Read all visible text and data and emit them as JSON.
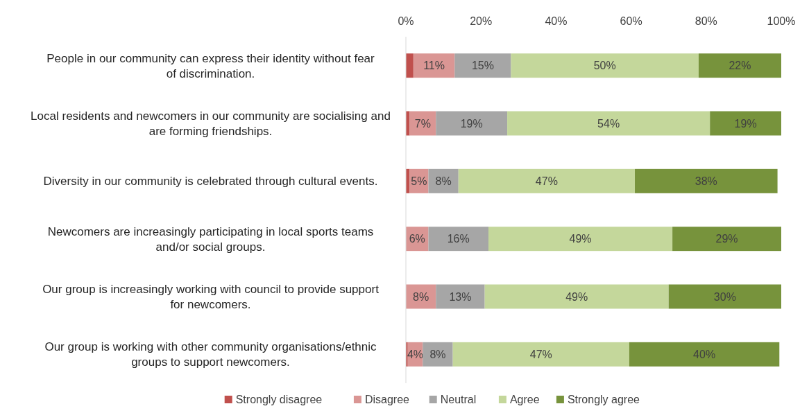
{
  "chart_data": {
    "type": "bar",
    "orientation": "horizontal",
    "stacked": true,
    "legend": "bottom",
    "grid": false,
    "categories": [
      "People in our community can express their identity  without fear of discrimination.",
      "Local residents and newcomers in our community are socialising and are forming friendships.",
      "Diversity in our community is celebrated through cultural events.",
      "Newcomers are increasingly participating in local sports teams and/or social groups.",
      "Our group is increasingly working with council to provide support for newcomers.",
      "Our group is working  with other community organisations/ethnic groups to support newcomers."
    ],
    "xlim": [
      0,
      100
    ],
    "xticks": [
      {
        "value": 0,
        "label": "0%"
      },
      {
        "value": 20,
        "label": "20%"
      },
      {
        "value": 40,
        "label": "40%"
      },
      {
        "value": 60,
        "label": "60%"
      },
      {
        "value": 80,
        "label": "80%"
      },
      {
        "value": 100,
        "label": "100%"
      }
    ],
    "series": [
      {
        "name": "Strongly disagree",
        "color": "#c0504d",
        "values": [
          2,
          1,
          1,
          0,
          0,
          0.5
        ],
        "value_labels": [
          null,
          null,
          null,
          null,
          null,
          null
        ]
      },
      {
        "name": "Disagree",
        "color": "#da9694",
        "values": [
          11,
          7,
          5,
          6,
          8,
          4
        ],
        "value_labels": [
          "11%",
          "7%",
          "5%",
          "6%",
          "8%",
          "4%"
        ]
      },
      {
        "name": "Neutral",
        "color": "#a6a6a6",
        "values": [
          15,
          19,
          8,
          16,
          13,
          8
        ],
        "value_labels": [
          "15%",
          "19%",
          "8%",
          "16%",
          "13%",
          "8%"
        ]
      },
      {
        "name": "Agree",
        "color": "#c4d79b",
        "values": [
          50,
          54,
          47,
          49,
          49,
          47
        ],
        "value_labels": [
          "50%",
          "54%",
          "47%",
          "49%",
          "49%",
          "47%"
        ]
      },
      {
        "name": "Strongly agree",
        "color": "#77933c",
        "values": [
          22,
          19,
          38,
          29,
          30,
          40
        ],
        "value_labels": [
          "22%",
          "19%",
          "38%",
          "29%",
          "30%",
          "40%"
        ]
      }
    ]
  }
}
